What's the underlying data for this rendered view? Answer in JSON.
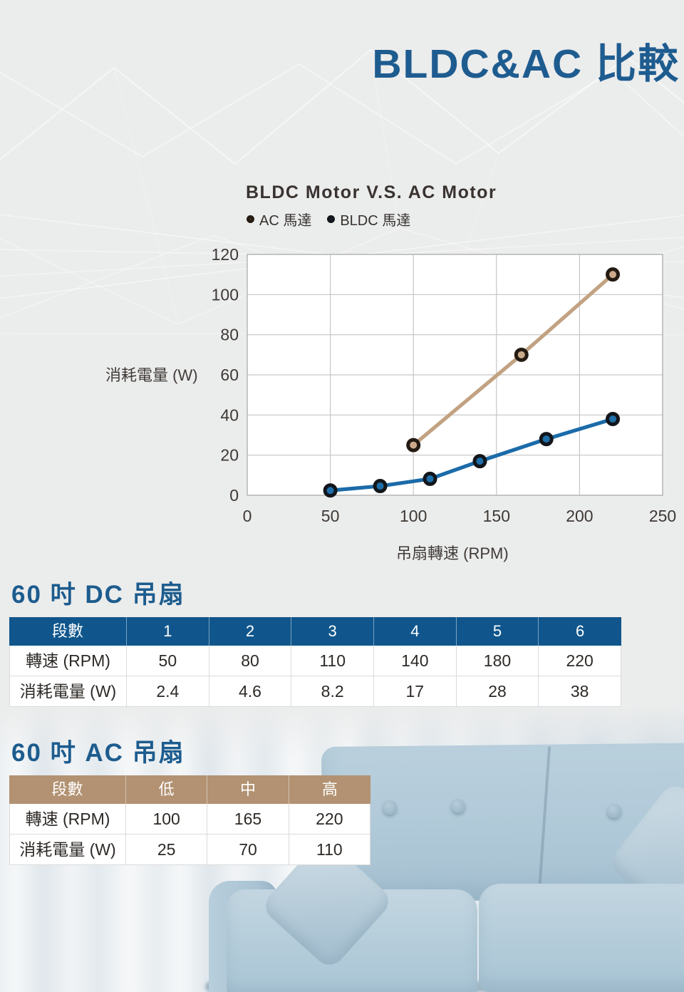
{
  "page": {
    "title": "BLDC&AC 比較"
  },
  "chart_data": {
    "type": "line",
    "title": "BLDC Motor V.S. AC Motor",
    "xlabel": "吊扇轉速 (RPM)",
    "ylabel": "消耗電量 (W)",
    "xlim": [
      0,
      250
    ],
    "ylim": [
      0,
      120
    ],
    "x_ticks": [
      0,
      50,
      100,
      150,
      200,
      250
    ],
    "y_ticks": [
      0,
      20,
      40,
      60,
      80,
      100,
      120
    ],
    "grid": true,
    "legend_position": "top-left",
    "series": [
      {
        "name": "AC 馬達",
        "color": "#C2A282",
        "marker_fill": "#CBAA8B",
        "marker_ring": "#241B13",
        "x": [
          100,
          165,
          220
        ],
        "y": [
          25,
          70,
          110
        ]
      },
      {
        "name": "BLDC 馬達",
        "color": "#1B6BA9",
        "marker_fill": "#1E6EA9",
        "marker_ring": "#12161B",
        "x": [
          50,
          80,
          110,
          140,
          180,
          220
        ],
        "y": [
          2.4,
          4.6,
          8.2,
          17,
          28,
          38
        ]
      }
    ]
  },
  "dc_section": {
    "heading": "60 吋 DC 吊扇",
    "table": {
      "header": [
        "段數",
        "1",
        "2",
        "3",
        "4",
        "5",
        "6"
      ],
      "rows": [
        [
          "轉速 (RPM)",
          "50",
          "80",
          "110",
          "140",
          "180",
          "220"
        ],
        [
          "消耗電量 (W)",
          "2.4",
          "4.6",
          "8.2",
          "17",
          "28",
          "38"
        ]
      ]
    }
  },
  "ac_section": {
    "heading": "60 吋 AC 吊扇",
    "table": {
      "header": [
        "段數",
        "低",
        "中",
        "高"
      ],
      "rows": [
        [
          "轉速 (RPM)",
          "100",
          "165",
          "220"
        ],
        [
          "消耗電量 (W)",
          "25",
          "70",
          "110"
        ]
      ]
    }
  },
  "colors": {
    "accent_blue": "#1E5C90",
    "dc_header_bg": "#10568C",
    "ac_header_bg": "#B29272",
    "line_tan": "#C2A282",
    "line_blue": "#1B6BA9"
  }
}
